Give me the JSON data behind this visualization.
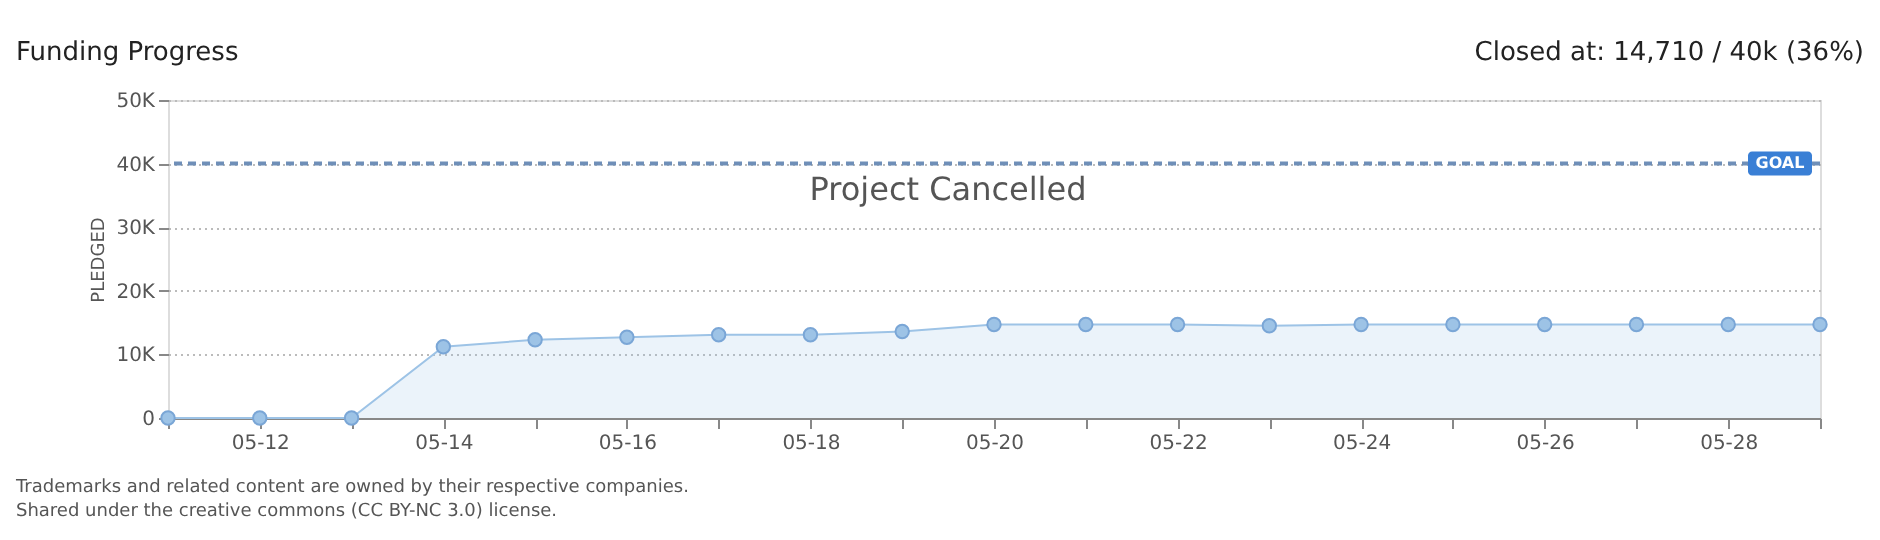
{
  "chart_data": {
    "type": "area",
    "title": "Funding Progress",
    "subtitle": "Closed at:  14,710 /  40k (36%)",
    "ylabel": "PLEDGED",
    "categories": [
      null,
      "05-12",
      null,
      "05-14",
      null,
      "05-16",
      null,
      "05-18",
      null,
      "05-20",
      null,
      "05-22",
      null,
      "05-24",
      null,
      "05-26",
      null,
      "05-28",
      null
    ],
    "series": [
      {
        "color": "#9dc3e6",
        "values": [
          0,
          0,
          0,
          11200,
          12300,
          12700,
          13100,
          13100,
          13600,
          14700,
          14700,
          14700,
          14500,
          14700,
          14700,
          14700,
          14700,
          14700,
          14700
        ]
      }
    ],
    "ylim": [
      0,
      50000
    ],
    "yticks": [
      0,
      {
        "value": 10000,
        "label": "10K"
      },
      {
        "value": 20000,
        "label": "20K"
      },
      {
        "value": 30000,
        "label": "30K"
      },
      {
        "value": 40000,
        "label": "40K"
      },
      {
        "value": 50000,
        "label": "50K"
      }
    ],
    "grid": "y",
    "marker": "circle",
    "ref_lines": [
      {
        "axis": "y",
        "value": 40000,
        "label": "GOAL",
        "color": "#6f8fb8",
        "line_style": "dashed"
      }
    ],
    "annotations": [
      "Project Cancelled",
      "Trademarks and related content are owned by their respective companies.",
      "Shared under the creative commons (CC BY-NC 3.0) license."
    ]
  }
}
